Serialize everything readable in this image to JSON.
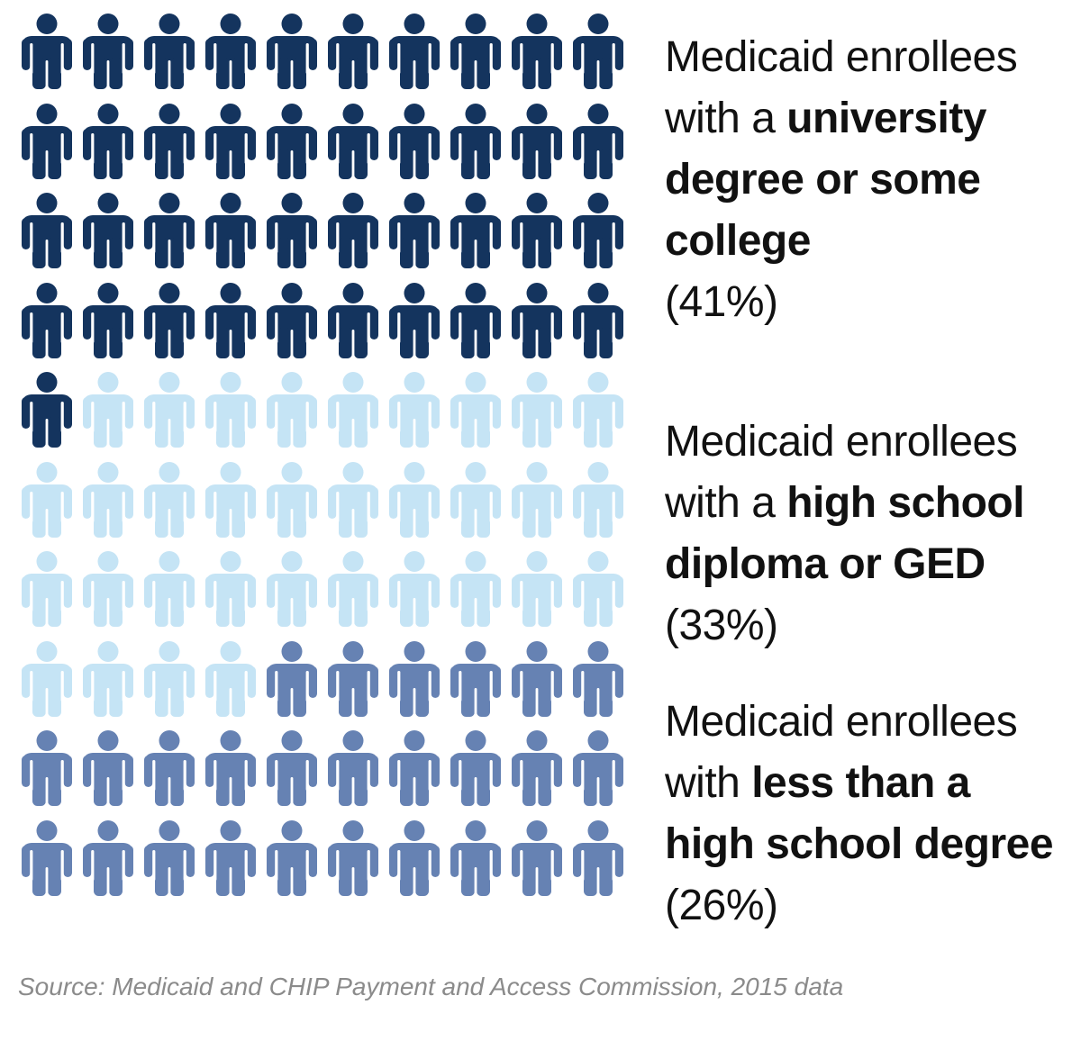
{
  "colors": {
    "background": "#ffffff",
    "text": "#111111",
    "source_text": "#8b8b8b",
    "group_dark_navy": "#14345e",
    "group_light_blue": "#c5e4f5",
    "group_slate_blue": "#6682b3"
  },
  "chart_data": {
    "type": "pictograph",
    "icon": "person",
    "grid": {
      "columns": 10,
      "rows": 10,
      "total_icons": 100,
      "fill_order": "row-major"
    },
    "categories": [
      "Medicaid enrollees with a university degree or some college",
      "Medicaid enrollees with a high school diploma or GED",
      "Medicaid enrollees with less than a high school degree"
    ],
    "values": [
      41,
      33,
      26
    ],
    "groups": [
      {
        "name": "university degree or some college",
        "percent": "41%",
        "count": 41,
        "color": "#14345e",
        "label_lines": [
          [
            {
              "text": "Medicaid enrollees",
              "bold": false
            }
          ],
          [
            {
              "text": "with a ",
              "bold": false
            },
            {
              "text": "university",
              "bold": true
            }
          ],
          [
            {
              "text": "degree or some",
              "bold": true
            }
          ],
          [
            {
              "text": "college",
              "bold": true
            }
          ],
          [
            {
              "text": "(41%)",
              "bold": false
            }
          ]
        ]
      },
      {
        "name": "high school diploma or GED",
        "percent": "33%",
        "count": 33,
        "color": "#c5e4f5",
        "label_lines": [
          [
            {
              "text": "Medicaid enrollees",
              "bold": false
            }
          ],
          [
            {
              "text": "with a ",
              "bold": false
            },
            {
              "text": "high school",
              "bold": true
            }
          ],
          [
            {
              "text": "diploma or GED",
              "bold": true
            }
          ],
          [
            {
              "text": "(33%)",
              "bold": false
            }
          ]
        ]
      },
      {
        "name": "less than a high school degree",
        "percent": "26%",
        "count": 26,
        "color": "#6682b3",
        "label_lines": [
          [
            {
              "text": "Medicaid enrollees",
              "bold": false
            }
          ],
          [
            {
              "text": "with ",
              "bold": false
            },
            {
              "text": "less than a",
              "bold": true
            }
          ],
          [
            {
              "text": "high school degree",
              "bold": true
            }
          ],
          [
            {
              "text": "(26%)",
              "bold": false
            }
          ]
        ]
      }
    ],
    "source": "Source: Medicaid and CHIP Payment and Access Commission, 2015 data",
    "legend_position": "right",
    "grid_lines": false
  }
}
